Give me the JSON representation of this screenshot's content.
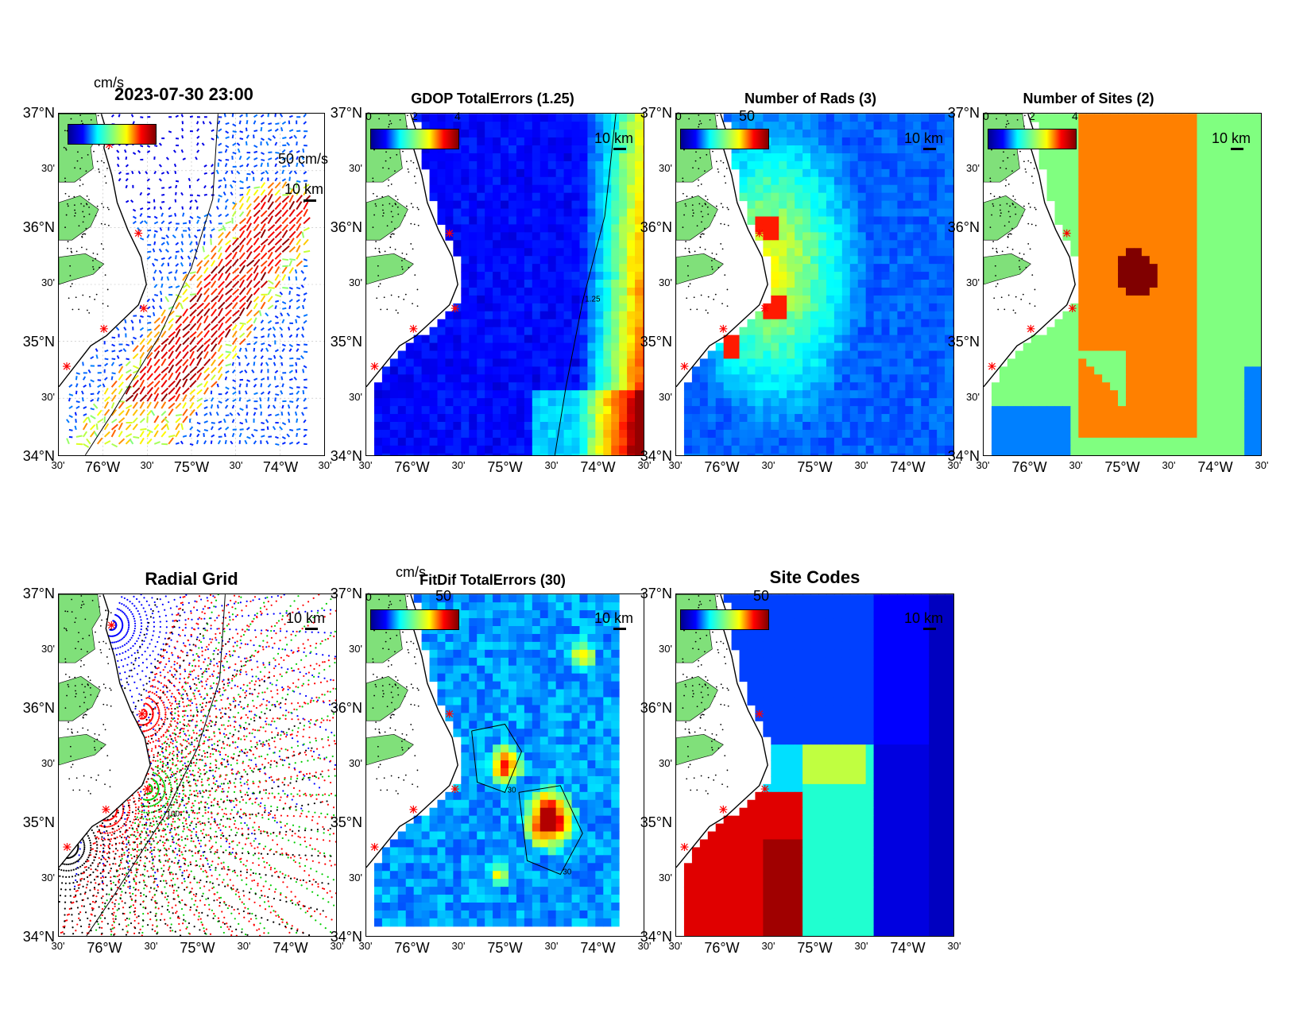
{
  "figure": {
    "lat_labels": [
      "37°N",
      "30'",
      "36°N",
      "30'",
      "35°N",
      "30'",
      "34°N"
    ],
    "lon_labels": [
      "30'",
      "76°W",
      "30'",
      "75°W",
      "30'",
      "74°W",
      "30'"
    ],
    "scale_label": "10 km"
  },
  "panels": [
    {
      "id": "currents",
      "title": "2023-07-30 23:00",
      "unit": "cm/s",
      "ref_vector": "50 cm/s",
      "cbar_ticks": [],
      "colorfield": "vectors"
    },
    {
      "id": "gdop",
      "title": "GDOP TotalErrors (1.25)",
      "cbar_ticks": [
        "0",
        "2",
        "4"
      ],
      "contour_label": "1.25",
      "colorfield": "gdop"
    },
    {
      "id": "nrads",
      "title": "Number of Rads (3)",
      "cbar_ticks": [
        "0",
        "50"
      ],
      "colorfield": "nrads"
    },
    {
      "id": "nsites",
      "title": "Number of Sites (2)",
      "cbar_ticks": [
        "0",
        "2",
        "4"
      ],
      "colorfield": "nsites"
    },
    {
      "id": "radial",
      "title": "Radial Grid",
      "cbar_ticks": [],
      "contour_label": "100",
      "colorfield": "radial"
    },
    {
      "id": "fitdif",
      "title": "FitDif TotalErrors (30)",
      "unit": "cm/s",
      "cbar_ticks": [
        "0",
        "50"
      ],
      "contour_label": "30",
      "colorfield": "fitdif"
    },
    {
      "id": "sitecodes",
      "title": "Site Codes",
      "cbar_ticks": [
        "50"
      ],
      "colorfield": "sitecodes"
    }
  ],
  "colors": {
    "land": "#80e07a",
    "coast": "#000000",
    "site_marker": "#ff0000",
    "radial_sites": [
      "#0000ff",
      "#ff0000",
      "#00cc00",
      "#ff0000",
      "#000000"
    ]
  }
}
